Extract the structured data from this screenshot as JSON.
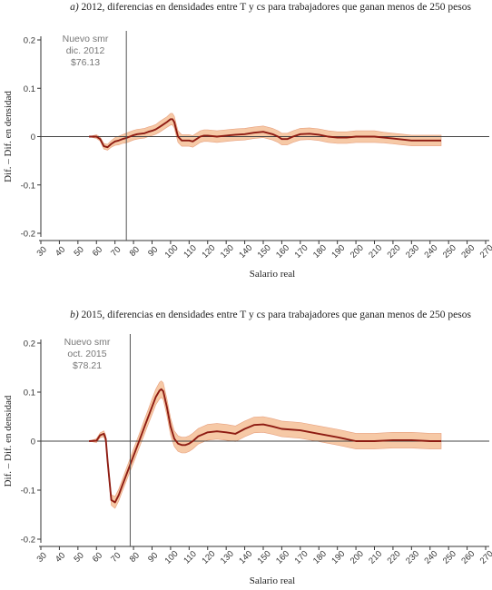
{
  "chart_data": [
    {
      "type": "line",
      "title_prefix": "a)",
      "title": " 2012, diferencias en densidades entre T y cs para trabajadores que ganan menos de 250 pesos",
      "xlabel": "Salario real",
      "ylabel": "Dif. – Dif. en densidad",
      "xlim": [
        30,
        270
      ],
      "ylim": [
        -0.2,
        0.2
      ],
      "x_ticks": [
        30,
        40,
        50,
        60,
        70,
        80,
        90,
        100,
        110,
        120,
        130,
        140,
        150,
        160,
        170,
        180,
        190,
        200,
        210,
        220,
        230,
        240,
        250,
        260,
        270
      ],
      "y_ticks": [
        -0.2,
        -0.1,
        0,
        0.1,
        0.2
      ],
      "y_tick_labels": [
        "-0.2",
        "-0.1",
        "0",
        "0.1",
        "0.2"
      ],
      "grid": false,
      "reference_line_x": 76.13,
      "annotation": [
        "Nuevo smr",
        "dic. 2012",
        "$76.13"
      ],
      "series": [
        {
          "x": [
            56,
            60,
            62,
            64,
            66,
            68,
            70,
            72,
            74,
            76,
            78,
            80,
            82,
            84,
            86,
            88,
            90,
            92,
            94,
            96,
            98,
            100,
            101,
            102,
            103,
            104,
            106,
            108,
            110,
            112,
            114,
            116,
            118,
            120,
            125,
            130,
            135,
            140,
            145,
            150,
            155,
            158,
            160,
            163,
            166,
            170,
            175,
            180,
            185,
            190,
            195,
            200,
            205,
            210,
            215,
            220,
            225,
            230,
            240,
            246
          ],
          "y": [
            0,
            0,
            -0.005,
            -0.02,
            -0.022,
            -0.015,
            -0.01,
            -0.008,
            -0.005,
            -0.003,
            0,
            0.003,
            0.005,
            0.006,
            0.007,
            0.01,
            0.012,
            0.015,
            0.02,
            0.025,
            0.03,
            0.036,
            0.036,
            0.03,
            0.015,
            0.0,
            -0.008,
            -0.008,
            -0.008,
            -0.01,
            -0.005,
            0.0,
            0.002,
            0.002,
            0.0,
            0.002,
            0.004,
            0.005,
            0.008,
            0.01,
            0.005,
            0.0,
            -0.005,
            -0.005,
            0.0,
            0.005,
            0.006,
            0.004,
            0.0,
            -0.002,
            -0.002,
            0.0,
            0.0,
            0.0,
            -0.002,
            -0.004,
            -0.006,
            -0.008,
            -0.008,
            -0.008
          ],
          "band": [
            0,
            0.004,
            0.004,
            0.006,
            0.006,
            0.007,
            0.008,
            0.009,
            0.009,
            0.01,
            0.01,
            0.01,
            0.01,
            0.01,
            0.01,
            0.01,
            0.01,
            0.01,
            0.011,
            0.011,
            0.011,
            0.012,
            0.012,
            0.012,
            0.012,
            0.012,
            0.012,
            0.012,
            0.012,
            0.012,
            0.012,
            0.012,
            0.012,
            0.012,
            0.012,
            0.012,
            0.012,
            0.012,
            0.012,
            0.012,
            0.012,
            0.012,
            0.012,
            0.012,
            0.012,
            0.012,
            0.012,
            0.012,
            0.012,
            0.012,
            0.012,
            0.012,
            0.012,
            0.012,
            0.011,
            0.011,
            0.011,
            0.011,
            0.011,
            0.011
          ]
        }
      ]
    },
    {
      "type": "line",
      "title_prefix": "b)",
      "title": " 2015, diferencias en densidades entre T y cs para trabajadores que ganan menos de 250 pesos",
      "xlabel": "Salario real",
      "ylabel": "Dif. – Dif. en densidad",
      "xlim": [
        30,
        270
      ],
      "ylim": [
        -0.2,
        0.2
      ],
      "x_ticks": [
        30,
        40,
        50,
        60,
        70,
        80,
        90,
        100,
        110,
        120,
        130,
        140,
        150,
        160,
        170,
        180,
        190,
        200,
        210,
        220,
        230,
        240,
        250,
        260,
        270
      ],
      "y_ticks": [
        -0.2,
        -0.1,
        0,
        0.1,
        0.2
      ],
      "y_tick_labels": [
        "-0.2",
        "-0.1",
        "0",
        "0.1",
        "0.2"
      ],
      "grid": false,
      "reference_line_x": 78.21,
      "annotation": [
        "Nuevo smr",
        "oct. 2015",
        "$78.21"
      ],
      "series": [
        {
          "x": [
            56,
            60,
            62,
            64,
            65,
            66,
            68,
            70,
            72,
            74,
            76,
            78,
            80,
            82,
            84,
            86,
            88,
            90,
            92,
            94,
            95,
            96,
            98,
            100,
            102,
            104,
            106,
            108,
            110,
            112,
            115,
            120,
            125,
            130,
            135,
            140,
            145,
            150,
            155,
            160,
            170,
            180,
            190,
            200,
            210,
            220,
            230,
            240,
            246
          ],
          "y": [
            0,
            0.001,
            0.012,
            0.015,
            0.005,
            -0.04,
            -0.12,
            -0.125,
            -0.11,
            -0.09,
            -0.07,
            -0.05,
            -0.03,
            -0.01,
            0.01,
            0.03,
            0.05,
            0.07,
            0.09,
            0.103,
            0.106,
            0.102,
            0.07,
            0.03,
            0.005,
            -0.005,
            -0.008,
            -0.008,
            -0.005,
            0.0,
            0.01,
            0.018,
            0.02,
            0.018,
            0.015,
            0.025,
            0.033,
            0.034,
            0.03,
            0.025,
            0.022,
            0.015,
            0.008,
            0.0,
            0.0,
            0.002,
            0.002,
            0.0,
            0.0
          ],
          "band": [
            0,
            0.004,
            0.005,
            0.006,
            0.007,
            0.008,
            0.011,
            0.012,
            0.012,
            0.012,
            0.013,
            0.013,
            0.014,
            0.014,
            0.014,
            0.015,
            0.015,
            0.016,
            0.016,
            0.017,
            0.017,
            0.017,
            0.017,
            0.017,
            0.016,
            0.016,
            0.016,
            0.016,
            0.016,
            0.016,
            0.016,
            0.016,
            0.016,
            0.016,
            0.016,
            0.016,
            0.016,
            0.016,
            0.016,
            0.016,
            0.016,
            0.016,
            0.016,
            0.016,
            0.016,
            0.016,
            0.016,
            0.016,
            0.016
          ]
        }
      ]
    }
  ],
  "colors": {
    "line": "#8e1b12",
    "band": "#f6c9a6",
    "band_edge": "#e8a07e",
    "axis": "#333333",
    "reference": "#555555",
    "annotation": "#777777"
  }
}
